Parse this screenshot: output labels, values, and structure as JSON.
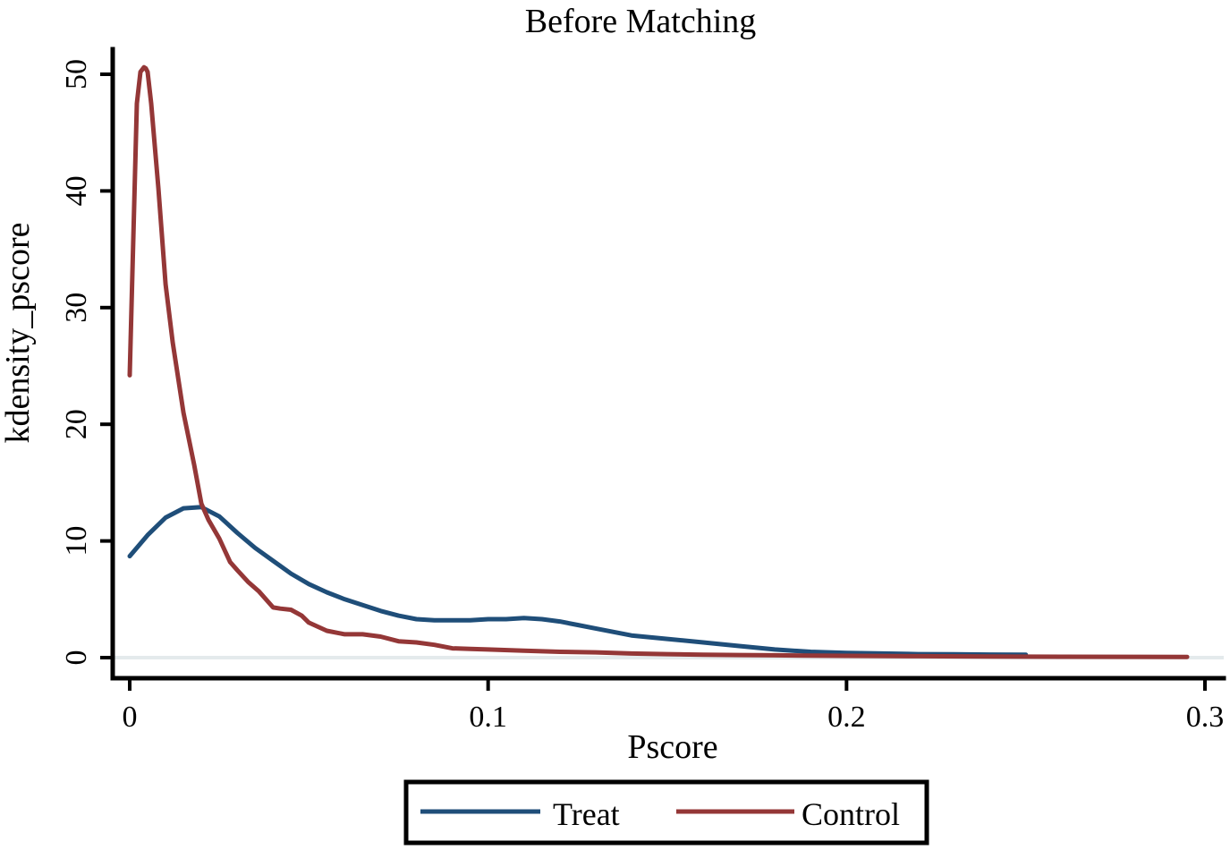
{
  "chart_data": {
    "type": "line",
    "title": "Before Matching",
    "xlabel": "Pscore",
    "ylabel": "kdensity_pscore",
    "xlim": [
      0,
      0.3
    ],
    "ylim": [
      0,
      50
    ],
    "x_ticks": [
      {
        "value": 0,
        "label": "0"
      },
      {
        "value": 0.1,
        "label": "0.1"
      },
      {
        "value": 0.2,
        "label": "0.2"
      },
      {
        "value": 0.3,
        "label": "0.3"
      }
    ],
    "y_ticks": [
      {
        "value": 0,
        "label": "0"
      },
      {
        "value": 10,
        "label": "10"
      },
      {
        "value": 20,
        "label": "20"
      },
      {
        "value": 30,
        "label": "30"
      },
      {
        "value": 40,
        "label": "40"
      },
      {
        "value": 50,
        "label": "50"
      }
    ],
    "grid": false,
    "legend_position": "bottom",
    "series": [
      {
        "name": "Treat",
        "color": "#1f4e79",
        "x": [
          0,
          0.005,
          0.01,
          0.015,
          0.02,
          0.025,
          0.03,
          0.035,
          0.04,
          0.045,
          0.05,
          0.055,
          0.06,
          0.065,
          0.07,
          0.075,
          0.08,
          0.085,
          0.09,
          0.095,
          0.1,
          0.105,
          0.11,
          0.115,
          0.12,
          0.125,
          0.13,
          0.135,
          0.14,
          0.15,
          0.16,
          0.17,
          0.18,
          0.19,
          0.2,
          0.21,
          0.22,
          0.23,
          0.24,
          0.25
        ],
        "y": [
          8.7,
          10.5,
          12.0,
          12.8,
          12.9,
          12.1,
          10.7,
          9.4,
          8.3,
          7.2,
          6.3,
          5.6,
          5.0,
          4.5,
          4.0,
          3.6,
          3.3,
          3.2,
          3.2,
          3.2,
          3.3,
          3.3,
          3.4,
          3.3,
          3.1,
          2.8,
          2.5,
          2.2,
          1.9,
          1.6,
          1.3,
          1.0,
          0.7,
          0.5,
          0.4,
          0.35,
          0.3,
          0.28,
          0.26,
          0.25
        ]
      },
      {
        "name": "Control",
        "color": "#943737",
        "x": [
          0,
          0.002,
          0.003,
          0.004,
          0.0045,
          0.005,
          0.006,
          0.008,
          0.01,
          0.012,
          0.015,
          0.018,
          0.02,
          0.022,
          0.025,
          0.028,
          0.03,
          0.033,
          0.036,
          0.04,
          0.042,
          0.045,
          0.048,
          0.05,
          0.055,
          0.06,
          0.065,
          0.07,
          0.075,
          0.08,
          0.085,
          0.09,
          0.095,
          0.1,
          0.11,
          0.12,
          0.13,
          0.14,
          0.15,
          0.16,
          0.17,
          0.18,
          0.19,
          0.2,
          0.22,
          0.24,
          0.26,
          0.28,
          0.295
        ],
        "y": [
          24.2,
          47.5,
          50.2,
          50.6,
          50.5,
          50.2,
          47.5,
          40.2,
          32.0,
          27.0,
          21.0,
          16.5,
          13.2,
          11.8,
          10.2,
          8.2,
          7.5,
          6.5,
          5.7,
          4.3,
          4.2,
          4.1,
          3.6,
          3.0,
          2.3,
          2.0,
          2.0,
          1.8,
          1.4,
          1.3,
          1.1,
          0.8,
          0.75,
          0.7,
          0.6,
          0.5,
          0.45,
          0.35,
          0.3,
          0.25,
          0.22,
          0.2,
          0.18,
          0.15,
          0.12,
          0.1,
          0.08,
          0.07,
          0.06
        ]
      }
    ]
  }
}
